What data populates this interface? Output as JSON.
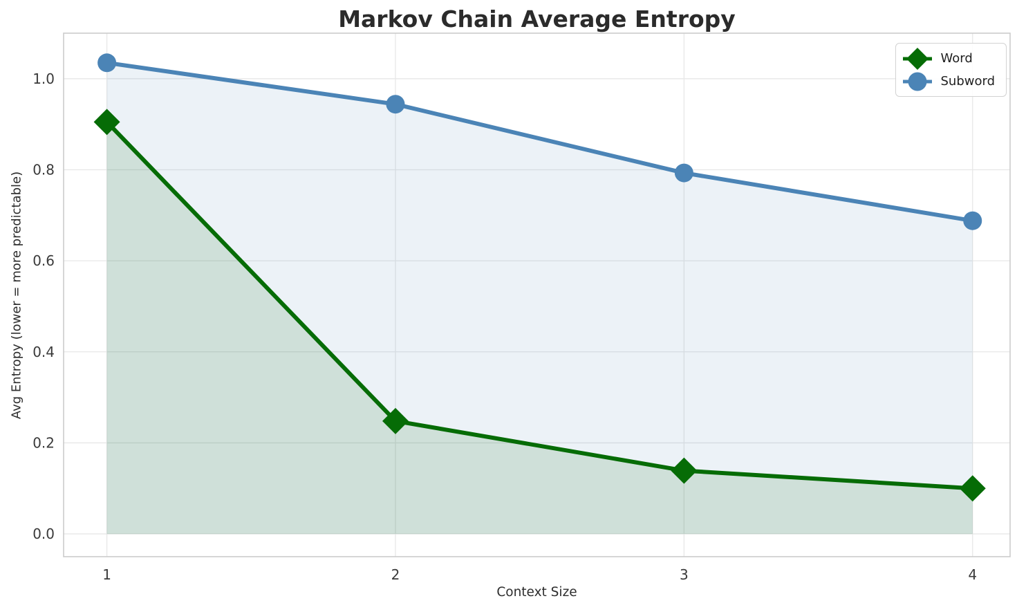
{
  "chart_data": {
    "type": "line",
    "title": "Markov Chain Average Entropy",
    "xlabel": "Context Size",
    "ylabel": "Avg Entropy (lower = more predictable)",
    "x": [
      1,
      2,
      3,
      4
    ],
    "xtick_labels": [
      "1",
      "2",
      "3",
      "4"
    ],
    "yticks": [
      0.0,
      0.2,
      0.4,
      0.6,
      0.8,
      1.0
    ],
    "ytick_labels": [
      "0.0",
      "0.2",
      "0.4",
      "0.6",
      "0.8",
      "1.0"
    ],
    "xlim": [
      0.85,
      4.13
    ],
    "ylim": [
      -0.05,
      1.1
    ],
    "grid": true,
    "legend_position": "upper right",
    "series": [
      {
        "name": "Word",
        "marker": "diamond",
        "color": "#066c06",
        "area_fill": "rgba(0, 100, 0, 0.12)",
        "values": [
          0.905,
          0.248,
          0.139,
          0.1
        ]
      },
      {
        "name": "Subword",
        "marker": "circle",
        "color": "#4b84b6",
        "area_fill": "rgba(70, 130, 180, 0.10)",
        "values": [
          1.035,
          0.944,
          0.793,
          0.688
        ]
      }
    ],
    "grid_color": "#e7e7e7",
    "spine_color": "#cbcbcb"
  }
}
